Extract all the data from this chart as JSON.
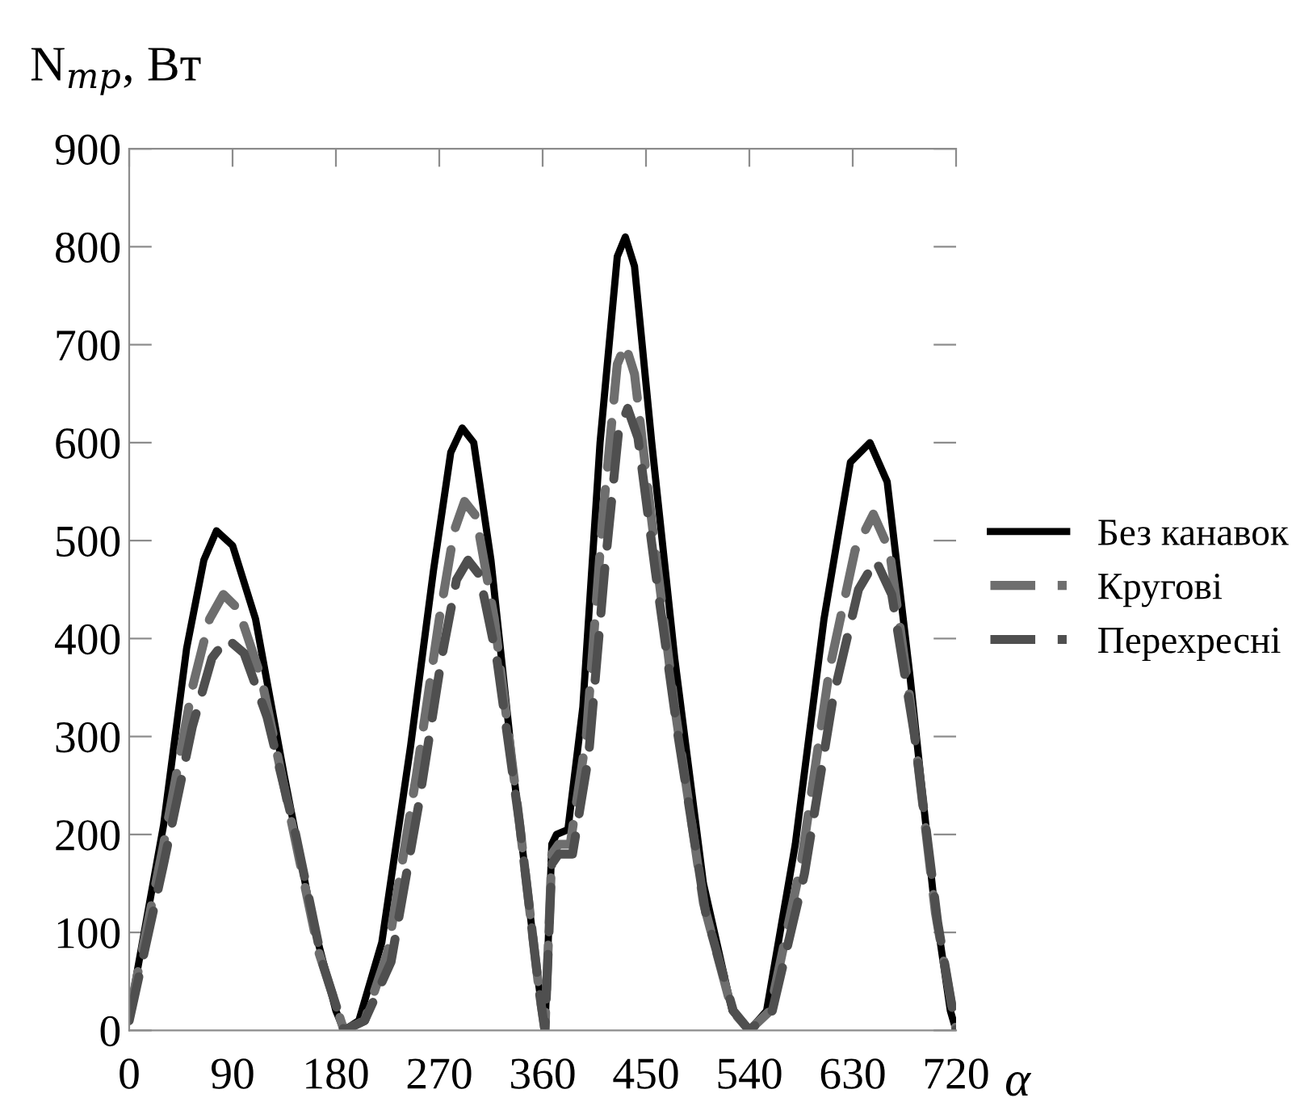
{
  "chart_data": {
    "type": "line",
    "ylabel": "N$_{тр}$, Вт",
    "xlabel": "α",
    "xlim": [
      0,
      720
    ],
    "xticks": [
      0,
      90,
      180,
      270,
      360,
      450,
      540,
      630,
      720
    ],
    "ylim": [
      0,
      900
    ],
    "yticks": [
      0,
      100,
      200,
      300,
      400,
      500,
      600,
      700,
      800,
      900
    ],
    "grid": false,
    "legend": "right",
    "series": [
      {
        "name": "Без канавок",
        "color": "#000000",
        "line_style": "solid",
        "x": [
          0,
          30,
          50,
          65,
          76,
          90,
          110,
          135,
          160,
          180,
          187,
          200,
          220,
          245,
          265,
          280,
          290,
          300,
          315,
          335,
          355,
          362,
          368,
          372,
          382,
          395,
          410,
          425,
          432,
          440,
          455,
          475,
          500,
          525,
          540,
          555,
          580,
          605,
          628,
          645,
          660,
          680,
          700,
          715,
          720
        ],
        "values": [
          15,
          210,
          390,
          480,
          510,
          495,
          420,
          260,
          110,
          20,
          0,
          10,
          90,
          290,
          470,
          590,
          615,
          600,
          480,
          260,
          60,
          0,
          190,
          200,
          205,
          330,
          600,
          790,
          810,
          780,
          600,
          380,
          150,
          20,
          0,
          20,
          190,
          420,
          580,
          600,
          560,
          360,
          140,
          20,
          0
        ]
      },
      {
        "name": "Кругові",
        "color": "#6e6e6e",
        "line_style": "dashed",
        "x": [
          0,
          30,
          55,
          70,
          82,
          95,
          115,
          140,
          165,
          187,
          205,
          225,
          250,
          270,
          283,
          292,
          302,
          318,
          338,
          357,
          362,
          368,
          374,
          384,
          398,
          412,
          425,
          432,
          440,
          455,
          475,
          500,
          525,
          540,
          558,
          585,
          610,
          632,
          648,
          662,
          682,
          702,
          720
        ],
        "values": [
          15,
          190,
          350,
          420,
          445,
          430,
          360,
          220,
          80,
          0,
          10,
          80,
          260,
          420,
          510,
          540,
          525,
          420,
          230,
          40,
          0,
          180,
          190,
          190,
          300,
          520,
          680,
          700,
          670,
          520,
          330,
          130,
          20,
          0,
          20,
          170,
          370,
          490,
          527,
          490,
          320,
          120,
          0
        ]
      },
      {
        "name": "Перехресні",
        "color": "#4f4f4f",
        "line_style": "dashed",
        "x": [
          0,
          30,
          55,
          72,
          85,
          100,
          120,
          145,
          168,
          187,
          205,
          228,
          252,
          272,
          285,
          295,
          305,
          320,
          340,
          357,
          362,
          368,
          374,
          386,
          400,
          414,
          426,
          434,
          443,
          458,
          478,
          502,
          526,
          540,
          560,
          588,
          613,
          635,
          650,
          664,
          684,
          704,
          720
        ],
        "values": [
          10,
          170,
          310,
          380,
          400,
          385,
          320,
          200,
          70,
          0,
          10,
          70,
          230,
          380,
          460,
          480,
          465,
          380,
          210,
          40,
          0,
          170,
          180,
          180,
          280,
          470,
          610,
          635,
          605,
          470,
          300,
          120,
          20,
          0,
          20,
          160,
          340,
          450,
          480,
          445,
          300,
          110,
          0
        ]
      }
    ]
  }
}
